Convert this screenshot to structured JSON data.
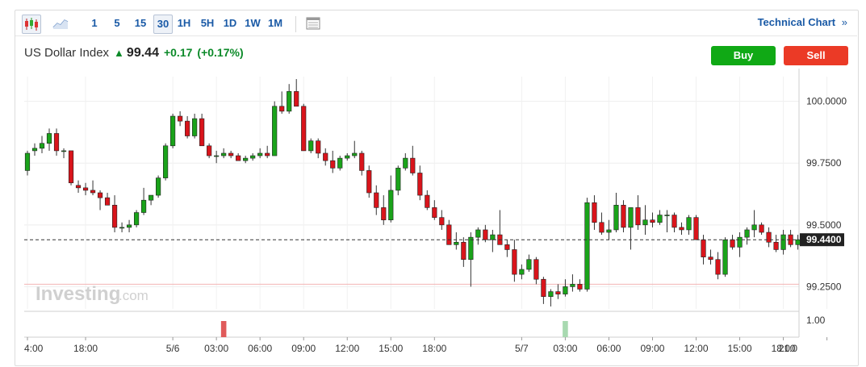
{
  "toolbar": {
    "intervals": [
      "1",
      "5",
      "15",
      "30",
      "1H",
      "5H",
      "1D",
      "1W",
      "1M"
    ],
    "active_interval": "30",
    "technical_chart_label": "Technical Chart",
    "technical_chart_arrow": "»",
    "candle_icon": "candlestick-icon",
    "area_icon": "area-chart-icon",
    "table_icon": "data-table-icon"
  },
  "instrument": {
    "name": "US Dollar Index",
    "price": "99.44",
    "change": "+0.17",
    "change_pct": "(+0.17%)",
    "direction_icon": "up-arrow-icon"
  },
  "actions": {
    "buy_label": "Buy",
    "sell_label": "Sell"
  },
  "watermark": {
    "brand": "Investing",
    "suffix": ".com"
  },
  "colors": {
    "up": "#1aa31a",
    "down": "#d9141b",
    "accent": "#1a5aa6",
    "buy": "#10a915",
    "sell": "#eb3a26"
  },
  "chart_data": {
    "type": "candlestick",
    "title": "",
    "xlabel": "",
    "ylabel": "",
    "ylim": [
      99.16,
      100.1
    ],
    "y_ticks": [
      "100.0000",
      "99.7500",
      "99.5000",
      "99.2500"
    ],
    "y_tick_values": [
      100.0,
      99.75,
      99.5,
      99.25
    ],
    "last_price_label": "99.4400",
    "last_price": 99.44,
    "x_tick_labels": [
      "4:00",
      "18:00",
      "5/6",
      "03:00",
      "06:00",
      "09:00",
      "12:00",
      "15:00",
      "18:00",
      "5/7",
      "03:00",
      "06:00",
      "09:00",
      "12:00",
      "15:00",
      "18:00",
      "21:0"
    ],
    "x_tick_index": [
      0,
      8,
      20,
      26,
      32,
      38,
      44,
      50,
      56,
      68,
      74,
      80,
      86,
      92,
      98,
      104,
      110
    ],
    "reference_line": 99.26,
    "grid": true,
    "candles": [
      [
        99.72,
        99.8,
        99.7,
        99.79
      ],
      [
        99.8,
        99.83,
        99.78,
        99.81
      ],
      [
        99.81,
        99.86,
        99.79,
        99.83
      ],
      [
        99.83,
        99.89,
        99.8,
        99.87
      ],
      [
        99.87,
        99.89,
        99.78,
        99.8
      ],
      [
        99.8,
        99.81,
        99.77,
        99.8
      ],
      [
        99.8,
        99.8,
        99.66,
        99.67
      ],
      [
        99.66,
        99.68,
        99.63,
        99.65
      ],
      [
        99.65,
        99.67,
        99.62,
        99.64
      ],
      [
        99.64,
        99.68,
        99.62,
        99.63
      ],
      [
        99.63,
        99.64,
        99.56,
        99.61
      ],
      [
        99.61,
        99.63,
        99.58,
        99.58
      ],
      [
        99.58,
        99.62,
        99.47,
        99.49
      ],
      [
        99.49,
        99.51,
        99.47,
        99.49
      ],
      [
        99.49,
        99.52,
        99.47,
        99.5
      ],
      [
        99.5,
        99.56,
        99.49,
        99.55
      ],
      [
        99.55,
        99.65,
        99.54,
        99.6
      ],
      [
        99.6,
        99.62,
        99.58,
        99.62
      ],
      [
        99.62,
        99.7,
        99.61,
        99.69
      ],
      [
        99.69,
        99.83,
        99.68,
        99.82
      ],
      [
        99.82,
        99.95,
        99.81,
        99.94
      ],
      [
        99.94,
        99.96,
        99.9,
        99.92
      ],
      [
        99.92,
        99.94,
        99.85,
        99.86
      ],
      [
        99.86,
        99.95,
        99.85,
        99.93
      ],
      [
        99.93,
        99.95,
        99.82,
        99.82
      ],
      [
        99.82,
        99.83,
        99.77,
        99.78
      ],
      [
        99.78,
        99.8,
        99.75,
        99.78
      ],
      [
        99.78,
        99.81,
        99.77,
        99.79
      ],
      [
        99.79,
        99.8,
        99.77,
        99.78
      ],
      [
        99.78,
        99.79,
        99.76,
        99.76
      ],
      [
        99.76,
        99.78,
        99.75,
        99.77
      ],
      [
        99.77,
        99.79,
        99.76,
        99.78
      ],
      [
        99.78,
        99.81,
        99.77,
        99.79
      ],
      [
        99.79,
        99.82,
        99.77,
        99.78
      ],
      [
        99.78,
        100.0,
        99.78,
        99.98
      ],
      [
        99.98,
        100.04,
        99.95,
        99.96
      ],
      [
        99.96,
        100.07,
        99.95,
        100.04
      ],
      [
        100.04,
        100.09,
        99.98,
        99.98
      ],
      [
        99.98,
        99.99,
        99.8,
        99.8
      ],
      [
        99.8,
        99.85,
        99.79,
        99.84
      ],
      [
        99.84,
        99.85,
        99.77,
        99.79
      ],
      [
        99.79,
        99.81,
        99.74,
        99.76
      ],
      [
        99.76,
        99.8,
        99.71,
        99.73
      ],
      [
        99.73,
        99.78,
        99.72,
        99.77
      ],
      [
        99.77,
        99.79,
        99.76,
        99.78
      ],
      [
        99.78,
        99.84,
        99.77,
        99.79
      ],
      [
        99.79,
        99.8,
        99.7,
        99.72
      ],
      [
        99.72,
        99.74,
        99.61,
        99.63
      ],
      [
        99.63,
        99.66,
        99.54,
        99.57
      ],
      [
        99.57,
        99.62,
        99.5,
        99.52
      ],
      [
        99.52,
        99.7,
        99.51,
        99.64
      ],
      [
        99.64,
        99.74,
        99.62,
        99.73
      ],
      [
        99.73,
        99.79,
        99.72,
        99.77
      ],
      [
        99.77,
        99.82,
        99.7,
        99.71
      ],
      [
        99.71,
        99.74,
        99.6,
        99.62
      ],
      [
        99.62,
        99.64,
        99.56,
        99.57
      ],
      [
        99.57,
        99.6,
        99.52,
        99.53
      ],
      [
        99.53,
        99.56,
        99.48,
        99.5
      ],
      [
        99.5,
        99.52,
        99.42,
        99.42
      ],
      [
        99.42,
        99.47,
        99.4,
        99.43
      ],
      [
        99.43,
        99.45,
        99.33,
        99.36
      ],
      [
        99.36,
        99.47,
        99.25,
        99.45
      ],
      [
        99.45,
        99.49,
        99.42,
        99.48
      ],
      [
        99.48,
        99.5,
        99.43,
        99.44
      ],
      [
        99.44,
        99.48,
        99.39,
        99.46
      ],
      [
        99.46,
        99.56,
        99.42,
        99.42
      ],
      [
        99.42,
        99.44,
        99.37,
        99.4
      ],
      [
        99.4,
        99.44,
        99.27,
        99.3
      ],
      [
        99.3,
        99.34,
        99.28,
        99.32
      ],
      [
        99.32,
        99.38,
        99.31,
        99.36
      ],
      [
        99.36,
        99.37,
        99.26,
        99.28
      ],
      [
        99.28,
        99.29,
        99.18,
        99.21
      ],
      [
        99.21,
        99.24,
        99.17,
        99.23
      ],
      [
        99.23,
        99.26,
        99.2,
        99.22
      ],
      [
        99.22,
        99.28,
        99.21,
        99.25
      ],
      [
        99.25,
        99.3,
        99.23,
        99.26
      ],
      [
        99.26,
        99.28,
        99.23,
        99.24
      ],
      [
        99.24,
        99.61,
        99.23,
        99.59
      ],
      [
        99.59,
        99.62,
        99.48,
        99.51
      ],
      [
        99.51,
        99.55,
        99.46,
        99.47
      ],
      [
        99.47,
        99.52,
        99.44,
        99.48
      ],
      [
        99.48,
        99.63,
        99.47,
        99.58
      ],
      [
        99.58,
        99.6,
        99.47,
        99.49
      ],
      [
        99.49,
        99.57,
        99.4,
        99.57
      ],
      [
        99.57,
        99.62,
        99.48,
        99.5
      ],
      [
        99.5,
        99.58,
        99.46,
        99.52
      ],
      [
        99.52,
        99.55,
        99.49,
        99.51
      ],
      [
        99.51,
        99.56,
        99.5,
        99.54
      ],
      [
        99.54,
        99.56,
        99.47,
        99.54
      ],
      [
        99.54,
        99.55,
        99.47,
        99.49
      ],
      [
        99.49,
        99.51,
        99.46,
        99.48
      ],
      [
        99.48,
        99.54,
        99.46,
        99.53
      ],
      [
        99.53,
        99.54,
        99.44,
        99.44
      ],
      [
        99.44,
        99.46,
        99.34,
        99.37
      ],
      [
        99.37,
        99.4,
        99.34,
        99.36
      ],
      [
        99.36,
        99.39,
        99.28,
        99.3
      ],
      [
        99.3,
        99.45,
        99.29,
        99.44
      ],
      [
        99.44,
        99.46,
        99.4,
        99.41
      ],
      [
        99.41,
        99.47,
        99.37,
        99.45
      ],
      [
        99.45,
        99.49,
        99.42,
        99.48
      ],
      [
        99.48,
        99.56,
        99.45,
        99.5
      ],
      [
        99.5,
        99.51,
        99.46,
        99.47
      ],
      [
        99.47,
        99.49,
        99.41,
        99.43
      ],
      [
        99.43,
        99.46,
        99.39,
        99.4
      ],
      [
        99.4,
        99.48,
        99.38,
        99.46
      ],
      [
        99.46,
        99.48,
        99.41,
        99.42
      ],
      [
        99.42,
        99.46,
        99.4,
        99.44
      ]
    ],
    "sub_panel": {
      "y_tick": "1.00",
      "bars": [
        {
          "index": 27,
          "value": 1.0,
          "color": "#e05a5a"
        },
        {
          "index": 74,
          "value": 1.0,
          "color": "#a8d9b0"
        }
      ]
    }
  }
}
